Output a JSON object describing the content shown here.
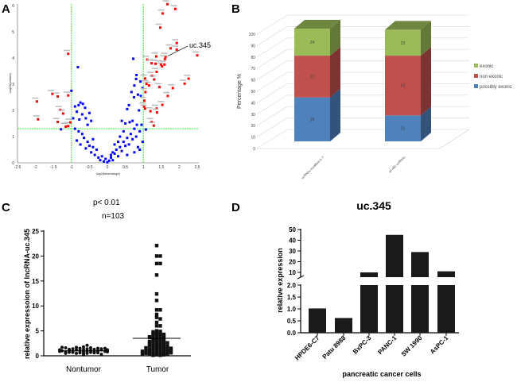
{
  "panels": {
    "a": "A",
    "b": "B",
    "c": "C",
    "d": "D"
  },
  "chart_data": [
    {
      "type": "scatter",
      "panel": "A",
      "xlabel": "log2(foldchange)",
      "ylabel": "-log10(pvalue)",
      "xlim": [
        -2.5,
        2.5
      ],
      "ylim": [
        0,
        6
      ],
      "xticks": [
        "-2.5",
        "-2",
        "-1.5",
        "-1",
        "-0.5",
        "0",
        "0.5",
        "1",
        "1.5",
        "2",
        "2.5"
      ],
      "yticks": [
        "0",
        "1",
        "2",
        "3",
        "4",
        "5",
        "6"
      ],
      "thresholds": {
        "x": [
          -1,
          1
        ],
        "y": 1.3
      },
      "annotation": "uc.345",
      "annotation_point": [
        1.62,
        4.05
      ],
      "colors": {
        "significant": "#ff0000",
        "not_significant": "#0000ff",
        "threshold": "#33ee33"
      },
      "significant": [
        [
          1.67,
          6.05
        ],
        [
          1.89,
          5.87
        ],
        [
          1.54,
          5.7
        ],
        [
          1.47,
          5.16
        ],
        [
          1.93,
          4.57
        ],
        [
          1.76,
          4.37
        ],
        [
          1.93,
          4.32
        ],
        [
          2.5,
          4.1
        ],
        [
          -1.09,
          4.16
        ],
        [
          1.11,
          3.94
        ],
        [
          1.36,
          4.06
        ],
        [
          1.62,
          4.05
        ],
        [
          1.6,
          3.96
        ],
        [
          1.23,
          3.8
        ],
        [
          1.34,
          3.78
        ],
        [
          1.49,
          3.76
        ],
        [
          1.59,
          3.75
        ],
        [
          1.52,
          3.68
        ],
        [
          1.37,
          3.47
        ],
        [
          1.24,
          3.32
        ],
        [
          1.3,
          3.18
        ],
        [
          1.05,
          3.22
        ],
        [
          1.09,
          3.01
        ],
        [
          1.16,
          2.95
        ],
        [
          1.45,
          2.89
        ],
        [
          2.26,
          3.21
        ],
        [
          2.15,
          3.02
        ],
        [
          1.82,
          2.85
        ],
        [
          1.06,
          2.7
        ],
        [
          1.68,
          2.55
        ],
        [
          1.03,
          2.37
        ],
        [
          1.53,
          2.21
        ],
        [
          1.02,
          2.15
        ],
        [
          1.05,
          2.07
        ],
        [
          1.2,
          1.97
        ],
        [
          1.37,
          2.07
        ],
        [
          1.38,
          1.92
        ],
        [
          1.23,
          1.56
        ],
        [
          1.29,
          1.42
        ],
        [
          -1.96,
          2.34
        ],
        [
          -1.93,
          1.66
        ],
        [
          -1.53,
          2.63
        ],
        [
          -1.38,
          2.53
        ],
        [
          -1.09,
          2.57
        ],
        [
          -1.31,
          2.02
        ],
        [
          -1.23,
          1.88
        ],
        [
          -1.38,
          1.56
        ],
        [
          -1.16,
          1.38
        ],
        [
          -1.09,
          1.4
        ],
        [
          -1.03,
          1.54
        ]
      ],
      "not_significant": [
        [
          0.72,
          3.97
        ],
        [
          -0.82,
          3.65
        ],
        [
          -1.0,
          2.75
        ],
        [
          0.81,
          3.35
        ],
        [
          0.8,
          3.2
        ],
        [
          0.92,
          3.1
        ],
        [
          0.75,
          2.95
        ],
        [
          0.98,
          2.85
        ],
        [
          0.67,
          2.7
        ],
        [
          0.85,
          2.6
        ],
        [
          0.93,
          2.55
        ],
        [
          0.74,
          2.5
        ],
        [
          0.6,
          2.2
        ],
        [
          0.55,
          2.05
        ],
        [
          0.88,
          2.0
        ],
        [
          -0.75,
          2.3
        ],
        [
          -0.68,
          2.25
        ],
        [
          -0.8,
          2.2
        ],
        [
          -0.62,
          2.1
        ],
        [
          -0.9,
          2.15
        ],
        [
          -0.85,
          1.95
        ],
        [
          -0.7,
          1.85
        ],
        [
          -0.5,
          1.9
        ],
        [
          -0.95,
          1.7
        ],
        [
          -0.78,
          1.65
        ],
        [
          -0.6,
          1.7
        ],
        [
          -0.45,
          1.6
        ],
        [
          -0.55,
          1.45
        ],
        [
          -0.9,
          1.3
        ],
        [
          -1.29,
          1.28
        ],
        [
          -0.8,
          1.2
        ],
        [
          -0.7,
          1.1
        ],
        [
          -0.65,
          0.95
        ],
        [
          -0.85,
          0.85
        ],
        [
          -0.75,
          0.7
        ],
        [
          -0.55,
          0.8
        ],
        [
          -0.5,
          0.65
        ],
        [
          -0.4,
          0.6
        ],
        [
          -0.45,
          0.4
        ],
        [
          -0.3,
          0.5
        ],
        [
          -0.35,
          0.3
        ],
        [
          -0.25,
          0.2
        ],
        [
          -0.2,
          0.1
        ],
        [
          -0.1,
          0.05
        ],
        [
          -0.05,
          0.15
        ],
        [
          0.0,
          0.02
        ],
        [
          0.05,
          0.08
        ],
        [
          0.1,
          0.2
        ],
        [
          0.15,
          0.1
        ],
        [
          0.2,
          0.35
        ],
        [
          0.25,
          0.5
        ],
        [
          0.3,
          0.25
        ],
        [
          0.35,
          0.6
        ],
        [
          0.4,
          0.45
        ],
        [
          0.45,
          0.8
        ],
        [
          0.5,
          0.65
        ],
        [
          0.55,
          0.95
        ],
        [
          0.6,
          0.7
        ],
        [
          0.65,
          1.1
        ],
        [
          0.7,
          0.9
        ],
        [
          0.75,
          1.3
        ],
        [
          0.8,
          1.0
        ],
        [
          0.85,
          0.6
        ],
        [
          0.9,
          1.2
        ],
        [
          0.95,
          1.45
        ],
        [
          1.07,
          1.27
        ],
        [
          0.45,
          1.2
        ],
        [
          0.35,
          1.0
        ],
        [
          0.5,
          1.5
        ],
        [
          0.62,
          1.55
        ],
        [
          0.4,
          1.6
        ],
        [
          0.7,
          1.6
        ],
        [
          0.82,
          1.45
        ],
        [
          0.3,
          0.8
        ],
        [
          0.2,
          0.7
        ],
        [
          0.15,
          0.4
        ],
        [
          0.1,
          0.3
        ],
        [
          -0.15,
          0.25
        ],
        [
          -0.6,
          0.55
        ],
        [
          -0.4,
          0.9
        ],
        [
          0.55,
          0.3
        ],
        [
          0.75,
          0.4
        ],
        [
          0.9,
          0.5
        ],
        [
          0.98,
          0.8
        ]
      ]
    },
    {
      "type": "bar",
      "stacked": true,
      "style": "3d",
      "panel": "B",
      "ylabel": "Percentage  %",
      "ylim": [
        0,
        100
      ],
      "yticks": [
        "0",
        "10",
        "20",
        "30",
        "40",
        "50",
        "60",
        "70",
        "80",
        "90",
        "100"
      ],
      "categories": [
        "ucRNAs modified in T",
        "all 481 ucRNAs"
      ],
      "series": [
        {
          "name": "possibly exonic",
          "values": [
            39,
            23
          ],
          "color": "#4f81bd"
        },
        {
          "name": "non exonic",
          "values": [
            37,
            53
          ],
          "color": "#c0504d"
        },
        {
          "name": "exonic",
          "values": [
            24,
            23
          ],
          "color": "#9bbb59"
        }
      ],
      "legend": "right"
    },
    {
      "type": "scatter",
      "panel": "C",
      "title": "p< 0.01",
      "subtitle": "n=103",
      "ylabel": "relative expressoion of lncRNA-uc.345",
      "ylim": [
        0,
        25
      ],
      "yticks": [
        "0",
        "5",
        "10",
        "15",
        "20",
        "25"
      ],
      "categories": [
        "Nontumor",
        "Tumor"
      ],
      "means": [
        1.0,
        3.5
      ],
      "series": [
        {
          "values": [
            0.4,
            0.5,
            0.6,
            0.7,
            0.8,
            0.9,
            1.0,
            1.1,
            1.2,
            1.3,
            1.4,
            1.5,
            1.6,
            1.7,
            1.8,
            2.1,
            0.5,
            0.6,
            0.7,
            0.8,
            0.9,
            1.0,
            1.1,
            1.2,
            1.3,
            1.4,
            1.5,
            0.6,
            0.7,
            0.8,
            0.9,
            1.0,
            1.1,
            1.2,
            1.3,
            1.4,
            0.8,
            0.9,
            1.0,
            1.1,
            1.2,
            0.9,
            1.0,
            1.1,
            1.6,
            1.5,
            1.7,
            0.3,
            0.2,
            0.5
          ]
        },
        {
          "values": [
            22.1,
            20.0,
            20.0,
            18.5,
            18.5,
            16.2,
            12.4,
            11.1,
            9.2,
            9.2,
            8.3,
            7.7,
            7.4,
            6.7,
            6.0,
            6.0,
            5.0,
            4.9,
            4.8,
            4.6,
            4.5,
            4.4,
            4.2,
            4.1,
            4.0,
            3.9,
            3.8,
            3.6,
            3.5,
            3.4,
            3.2,
            3.1,
            3.0,
            2.8,
            2.7,
            2.6,
            2.5,
            2.3,
            2.2,
            2.0,
            1.9,
            1.8,
            1.7,
            1.6,
            1.5,
            1.4,
            1.3,
            1.2,
            1.1,
            1.0,
            0.9,
            0.8,
            0.7,
            0.6,
            0.5,
            0.4,
            0.3,
            0.2,
            0.1,
            0.1,
            0.2,
            0.3,
            0.5,
            0.8,
            1.0,
            1.3,
            1.6,
            2.0,
            2.4,
            2.9,
            3.3,
            4.3,
            0.6,
            1.1,
            1.9,
            2.6,
            3.7,
            0.4,
            0.9,
            1.5
          ]
        }
      ]
    },
    {
      "type": "bar",
      "panel": "D",
      "title": "uc.345",
      "xlabel": "pancreatic cancer cells",
      "ylabel": "relative expression",
      "axis_break": true,
      "yticks_lower": [
        "0.0",
        "0.5",
        "1.0",
        "1.5",
        "2.0"
      ],
      "yticks_upper": [
        "10",
        "20",
        "30",
        "40",
        "50"
      ],
      "categories": [
        "HPDE6-C7",
        "Patu 8988",
        "BxPC-3",
        "PANC-1",
        "SW 1990",
        "AsPC-1"
      ],
      "values": [
        1.02,
        0.62,
        10,
        45,
        29,
        11
      ],
      "color": "#1a1a1a"
    }
  ]
}
